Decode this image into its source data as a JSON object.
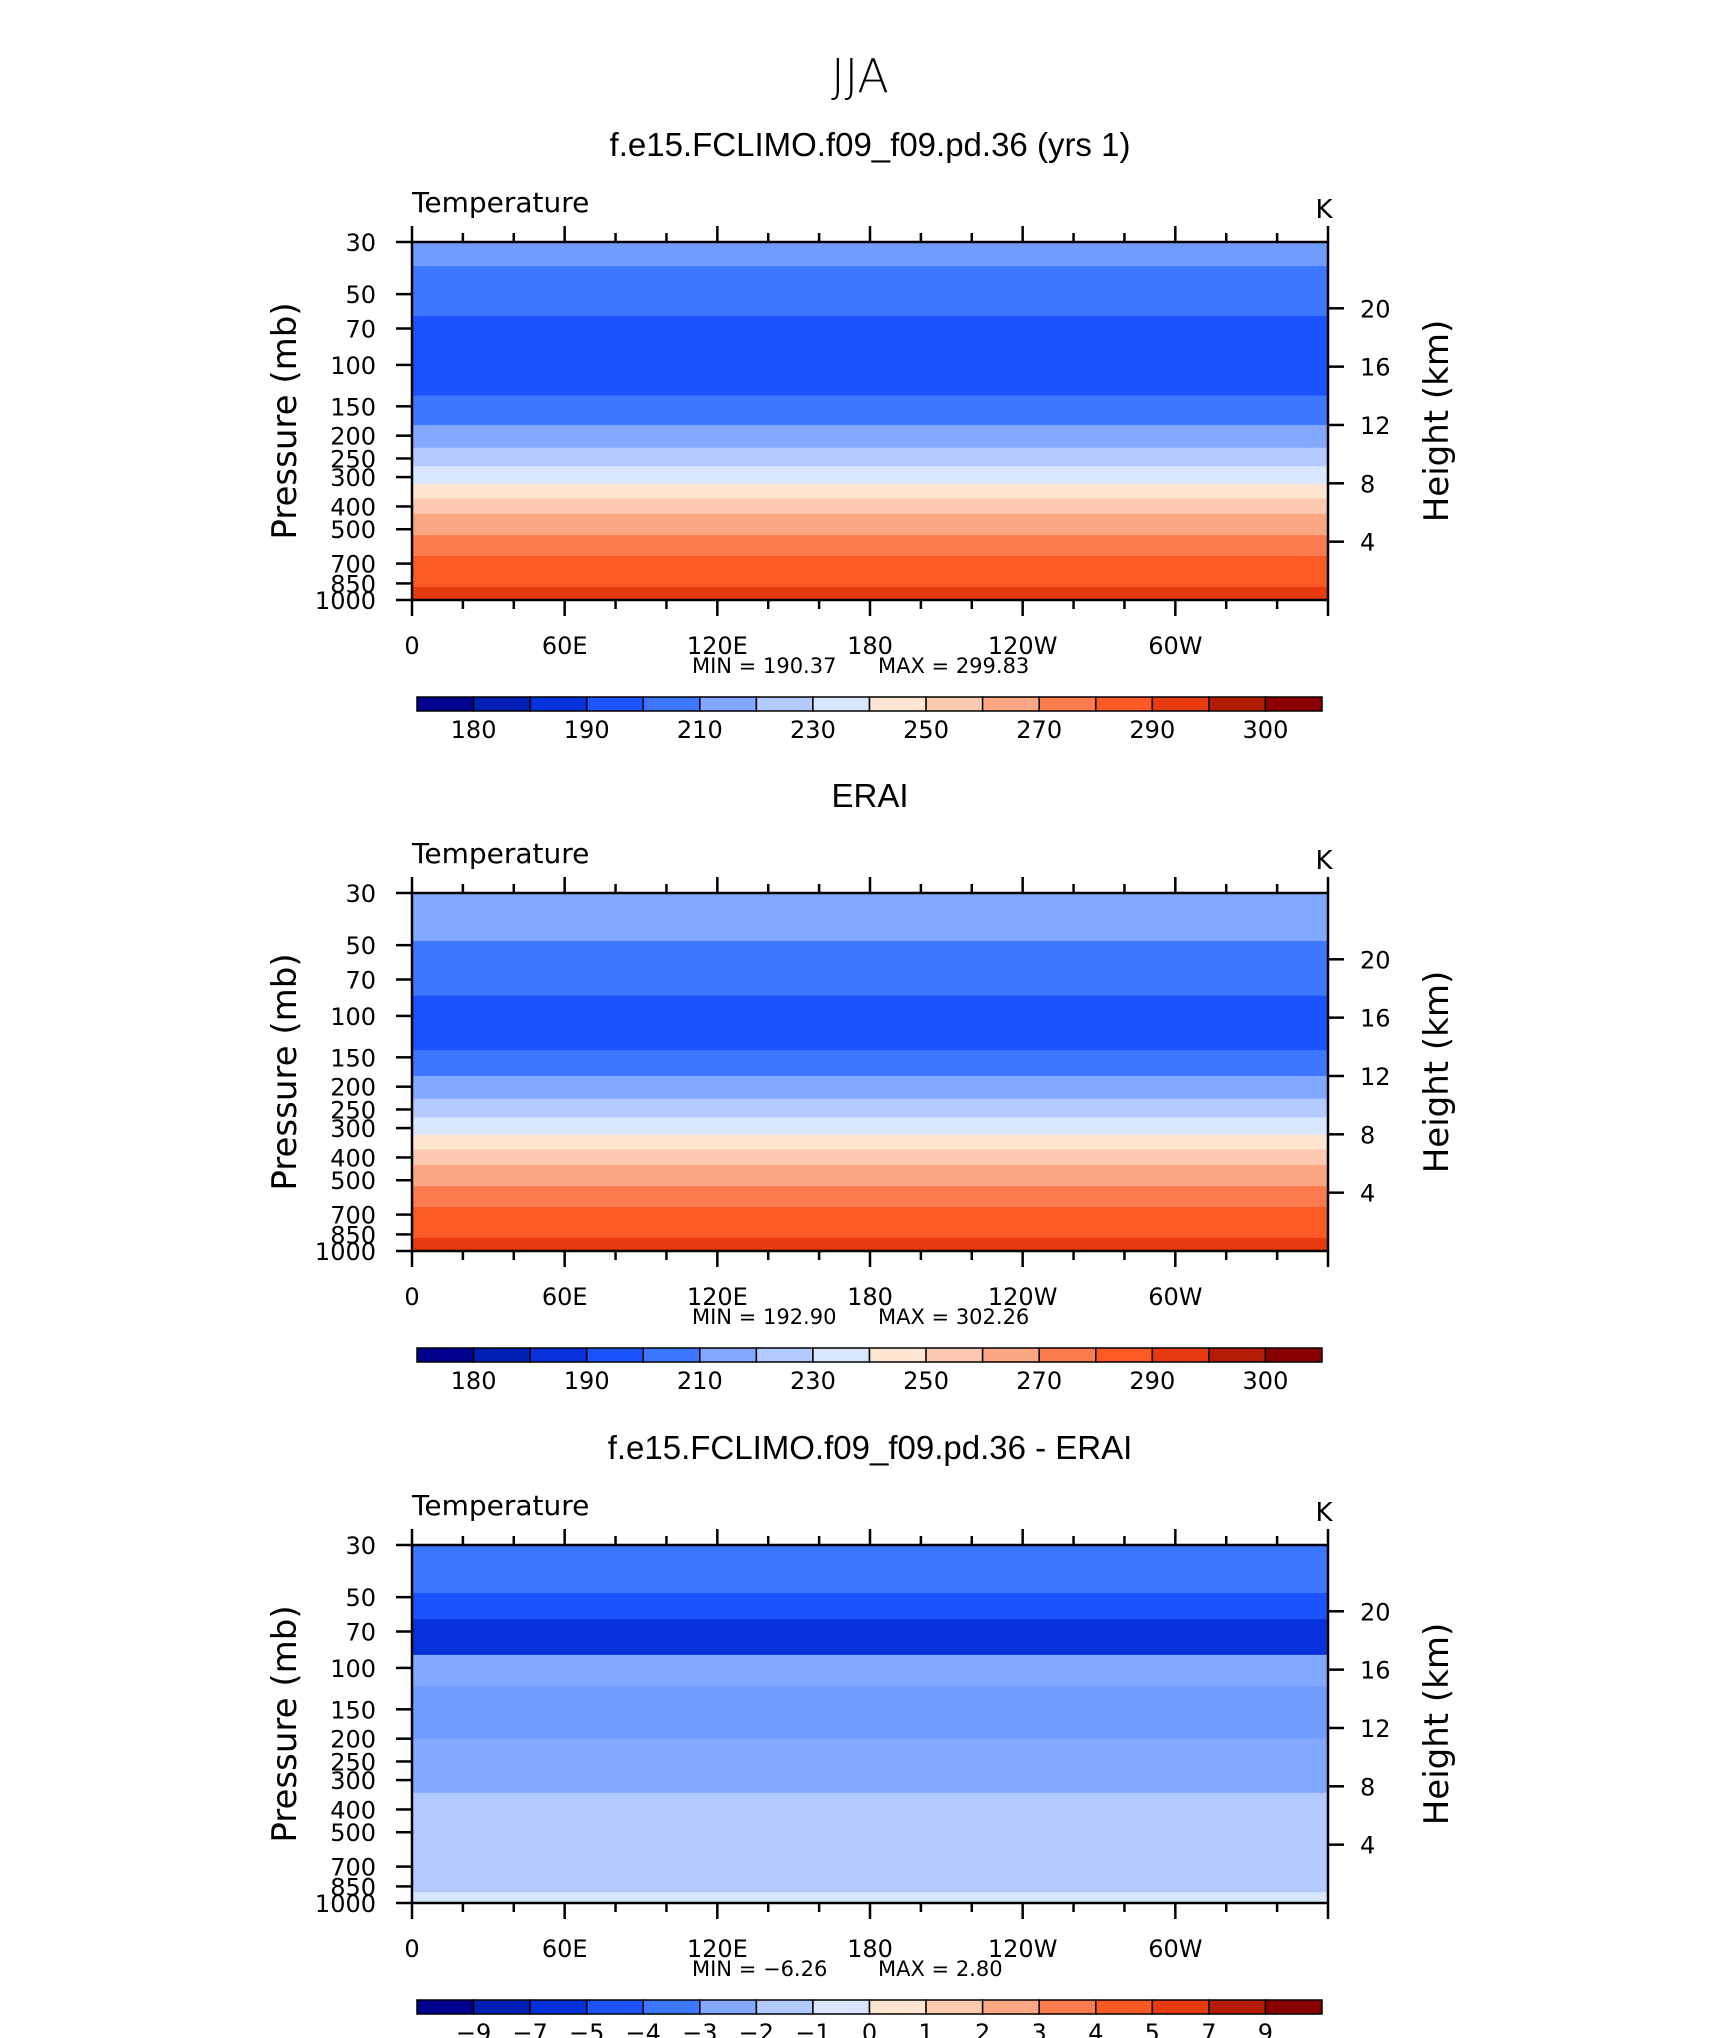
{
  "figure_title": "JJA",
  "chart_data": [
    {
      "type": "heatmap",
      "title": "f.e15.FCLIMO.f09_f09.pd.36 (yrs 1)",
      "variable_label": "Temperature",
      "units_label": "K",
      "ylabel_left": "Pressure (mb)",
      "ylabel_right": "Height (km)",
      "x_ticks": [
        "0",
        "60E",
        "120E",
        "180",
        "120W",
        "60W"
      ],
      "y_left_ticks": [
        "30",
        "50",
        "70",
        "100",
        "150",
        "200",
        "250",
        "300",
        "400",
        "500",
        "700",
        "850",
        "1000"
      ],
      "y_right_ticks": [
        "20",
        "16",
        "12",
        "8",
        "4"
      ],
      "min_label": "MIN = 190.37",
      "max_label": "MAX = 299.83",
      "colorbar_labels": [
        "180",
        "190",
        "210",
        "230",
        "250",
        "270",
        "290",
        "300"
      ],
      "profile_bands": [
        {
          "p_top": 30,
          "p_bottom": 38,
          "color": "#6f9dff"
        },
        {
          "p_top": 38,
          "p_bottom": 62,
          "color": "#3e77ff"
        },
        {
          "p_top": 62,
          "p_bottom": 135,
          "color": "#1b53ff"
        },
        {
          "p_top": 135,
          "p_bottom": 180,
          "color": "#3e77ff"
        },
        {
          "p_top": 180,
          "p_bottom": 225,
          "color": "#82a8ff"
        },
        {
          "p_top": 225,
          "p_bottom": 270,
          "color": "#b3caff"
        },
        {
          "p_top": 270,
          "p_bottom": 320,
          "color": "#d8e6ff"
        },
        {
          "p_top": 320,
          "p_bottom": 370,
          "color": "#fde5d2"
        },
        {
          "p_top": 370,
          "p_bottom": 430,
          "color": "#fccab0"
        },
        {
          "p_top": 430,
          "p_bottom": 530,
          "color": "#fba783"
        },
        {
          "p_top": 530,
          "p_bottom": 650,
          "color": "#fb7b4f"
        },
        {
          "p_top": 650,
          "p_bottom": 880,
          "color": "#fb5a24"
        },
        {
          "p_top": 880,
          "p_bottom": 1000,
          "color": "#e73a0e"
        }
      ]
    },
    {
      "type": "heatmap",
      "title": "ERAI",
      "variable_label": "Temperature",
      "units_label": "K",
      "ylabel_left": "Pressure (mb)",
      "ylabel_right": "Height (km)",
      "x_ticks": [
        "0",
        "60E",
        "120E",
        "180",
        "120W",
        "60W"
      ],
      "y_left_ticks": [
        "30",
        "50",
        "70",
        "100",
        "150",
        "200",
        "250",
        "300",
        "400",
        "500",
        "700",
        "850",
        "1000"
      ],
      "y_right_ticks": [
        "20",
        "16",
        "12",
        "8",
        "4"
      ],
      "min_label": "MIN = 192.90",
      "max_label": "MAX = 302.26",
      "colorbar_labels": [
        "180",
        "190",
        "210",
        "230",
        "250",
        "270",
        "290",
        "300"
      ],
      "profile_bands": [
        {
          "p_top": 30,
          "p_bottom": 48,
          "color": "#82a8ff"
        },
        {
          "p_top": 48,
          "p_bottom": 82,
          "color": "#3e77ff"
        },
        {
          "p_top": 82,
          "p_bottom": 140,
          "color": "#1b53ff"
        },
        {
          "p_top": 140,
          "p_bottom": 180,
          "color": "#3e77ff"
        },
        {
          "p_top": 180,
          "p_bottom": 225,
          "color": "#82a8ff"
        },
        {
          "p_top": 225,
          "p_bottom": 270,
          "color": "#b3caff"
        },
        {
          "p_top": 270,
          "p_bottom": 320,
          "color": "#d8e6ff"
        },
        {
          "p_top": 320,
          "p_bottom": 370,
          "color": "#fde5d2"
        },
        {
          "p_top": 370,
          "p_bottom": 430,
          "color": "#fccab0"
        },
        {
          "p_top": 430,
          "p_bottom": 530,
          "color": "#fba783"
        },
        {
          "p_top": 530,
          "p_bottom": 650,
          "color": "#fb7b4f"
        },
        {
          "p_top": 650,
          "p_bottom": 880,
          "color": "#fb5a24"
        },
        {
          "p_top": 880,
          "p_bottom": 1000,
          "color": "#e73a0e"
        }
      ]
    },
    {
      "type": "heatmap",
      "title": "f.e15.FCLIMO.f09_f09.pd.36 - ERAI",
      "variable_label": "Temperature",
      "units_label": "K",
      "ylabel_left": "Pressure (mb)",
      "ylabel_right": "Height (km)",
      "x_ticks": [
        "0",
        "60E",
        "120E",
        "180",
        "120W",
        "60W"
      ],
      "y_left_ticks": [
        "30",
        "50",
        "70",
        "100",
        "150",
        "200",
        "250",
        "300",
        "400",
        "500",
        "700",
        "850",
        "1000"
      ],
      "y_right_ticks": [
        "20",
        "16",
        "12",
        "8",
        "4"
      ],
      "min_label": "MIN = −6.26",
      "max_label": "MAX = 2.80",
      "colorbar_labels": [
        "−9",
        "−7",
        "−5",
        "−4",
        "−3",
        "−2",
        "−1",
        "0",
        "1",
        "2",
        "3",
        "4",
        "5",
        "7",
        "9"
      ],
      "profile_bands": [
        {
          "p_top": 30,
          "p_bottom": 48,
          "color": "#3e77ff"
        },
        {
          "p_top": 48,
          "p_bottom": 62,
          "color": "#1b53ff"
        },
        {
          "p_top": 62,
          "p_bottom": 88,
          "color": "#0732db"
        },
        {
          "p_top": 88,
          "p_bottom": 120,
          "color": "#82a8ff"
        },
        {
          "p_top": 120,
          "p_bottom": 200,
          "color": "#6f9dff"
        },
        {
          "p_top": 200,
          "p_bottom": 340,
          "color": "#82a8ff"
        },
        {
          "p_top": 340,
          "p_bottom": 560,
          "color": "#b3caff"
        },
        {
          "p_top": 560,
          "p_bottom": 900,
          "color": "#b3caff"
        },
        {
          "p_top": 900,
          "p_bottom": 1000,
          "color": "#d8e6ff"
        }
      ]
    }
  ],
  "colorbar_colors": [
    "#00008e",
    "#001fb5",
    "#0732db",
    "#1b53ff",
    "#3e77ff",
    "#82a8ff",
    "#b3caff",
    "#d8e6ff",
    "#fde5d2",
    "#fccab0",
    "#fba783",
    "#fb7b4f",
    "#fb5a24",
    "#e73a0e",
    "#b51c05",
    "#8a0000"
  ]
}
